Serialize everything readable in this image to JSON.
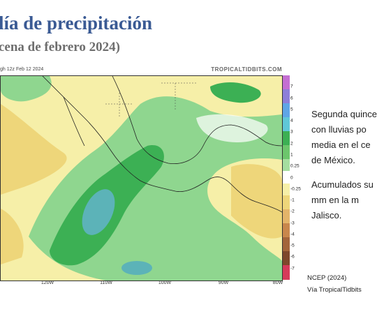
{
  "slide": {
    "title": "lía de precipitación",
    "subtitle": "cena de febrero 2024)"
  },
  "map": {
    "header_left": "gh 12z Feb 12 2024",
    "header_right": "TROPICALTIDBITS.COM",
    "colorbar_ticks": [
      "7",
      "6",
      "5",
      "4",
      "3",
      "2",
      "1",
      "0.25",
      "0",
      "-0.25",
      "-1",
      "-2",
      "-3",
      "-4",
      "-5",
      "-6",
      "-7"
    ],
    "lon_labels": [
      "120W",
      "110W",
      "100W",
      "90W",
      "80W"
    ],
    "colors": {
      "ocean_green": "#8fd68f",
      "deep_green": "#3cb054",
      "teal_core": "#5cb3b8",
      "light_yellow": "#f6efa8",
      "mid_yellow": "#eed67a",
      "white": "#ffffff"
    }
  },
  "side_text": {
    "lines1": [
      "Segunda quince",
      "con lluvias po",
      "media en el ce",
      "de México."
    ],
    "lines2": [
      "Acumulados su",
      "mm en la m",
      "Jalisco."
    ]
  },
  "credits": {
    "line1": "NCEP (2024)",
    "line2": "Vía TropicalTidbits"
  }
}
